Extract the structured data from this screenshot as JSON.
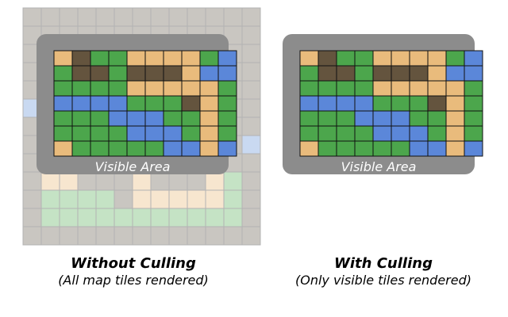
{
  "colors": {
    "grass": "#4ca64c",
    "water": "#5b87d9",
    "sand": "#e9bb7c",
    "rock": "#64543e",
    "ghost_grass": "#c5e3c5",
    "ghost_sand": "#f7e6cf",
    "ghost_water": "#c9d9f1",
    "ghost_base": "#c9c6c1",
    "frame": "#8c8c8c",
    "grid_dark": "#111111",
    "grid_light": "#b3b3b3"
  },
  "visible_grid": [
    "SRGGSSSSGW",
    "GRRGRRRSWW",
    "GGGGSSSSSG",
    "WWWWGGGRSG",
    "GGGWWWGGSG",
    "GGGGWWWGSG",
    "SGGGGGWWSW"
  ],
  "outer_grid": [
    "BBBBBBBBBBBBB",
    "BBBBBBBBBBBBB",
    "BBBBBBBBBBBBB",
    "BBBBBBBBBBBBB",
    "BBBBBBBBBBBBB",
    "WBBBBBBBBBBBB",
    "BBBBBBBBBBBBB",
    "BBBBBBBBBBBBW",
    "BBBBBBBBBBBBB",
    "BSSBBBSBBBSGB",
    "BGGGGBSSSSSGB",
    "BGGGGGGGGGGGB",
    "BBBBBBBBBBBBB"
  ],
  "left_panel": {
    "frame_label": "Visible Area",
    "title": "Without Culling",
    "subtitle": "(All map tiles rendered)"
  },
  "right_panel": {
    "frame_label": "Visible Area",
    "title": "With Culling",
    "subtitle": "(Only visible tiles rendered)"
  }
}
